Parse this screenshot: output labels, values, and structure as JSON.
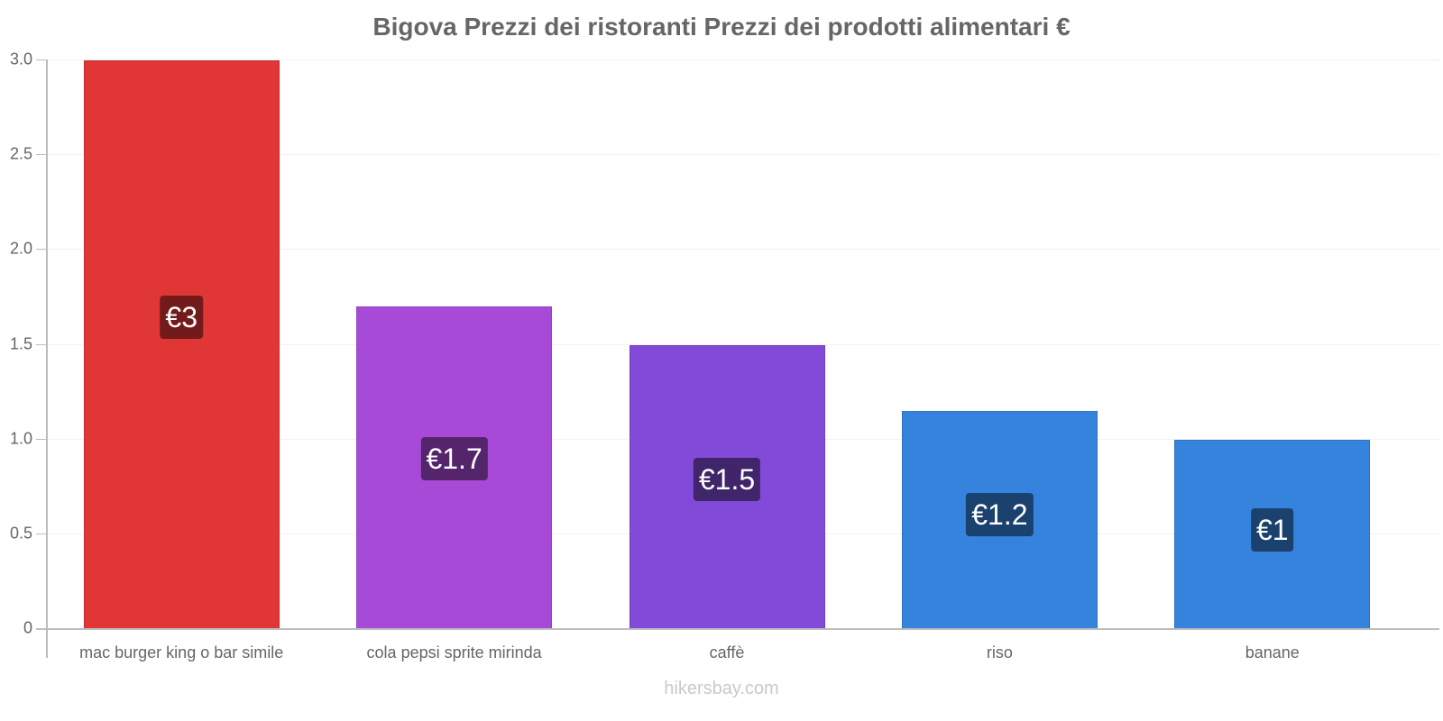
{
  "chart_data": {
    "type": "bar",
    "title": "Bigova Prezzi dei ristoranti Prezzi dei prodotti alimentari €",
    "xlabel": "",
    "ylabel": "",
    "ylim": [
      0,
      3.0
    ],
    "grid": true,
    "yticks": [
      "0",
      "0.5",
      "1.0",
      "1.5",
      "2.0",
      "2.5",
      "3.0"
    ],
    "categories": [
      "mac burger king o bar simile",
      "cola pepsi sprite mirinda",
      "caffè",
      "riso",
      "banane"
    ],
    "values": [
      3.0,
      1.7,
      1.5,
      1.15,
      1.0
    ],
    "data_labels": [
      "€3",
      "€1.7",
      "€1.5",
      "€1.2",
      "€1"
    ],
    "bar_colors": [
      "#e03636",
      "#a84ad8",
      "#824ad8",
      "#3683dd",
      "#3683dd"
    ],
    "label_bg_colors": [
      "#731b1b",
      "#55256b",
      "#40256b",
      "#1b416e",
      "#1b416e"
    ]
  },
  "watermark": "hikersbay.com"
}
